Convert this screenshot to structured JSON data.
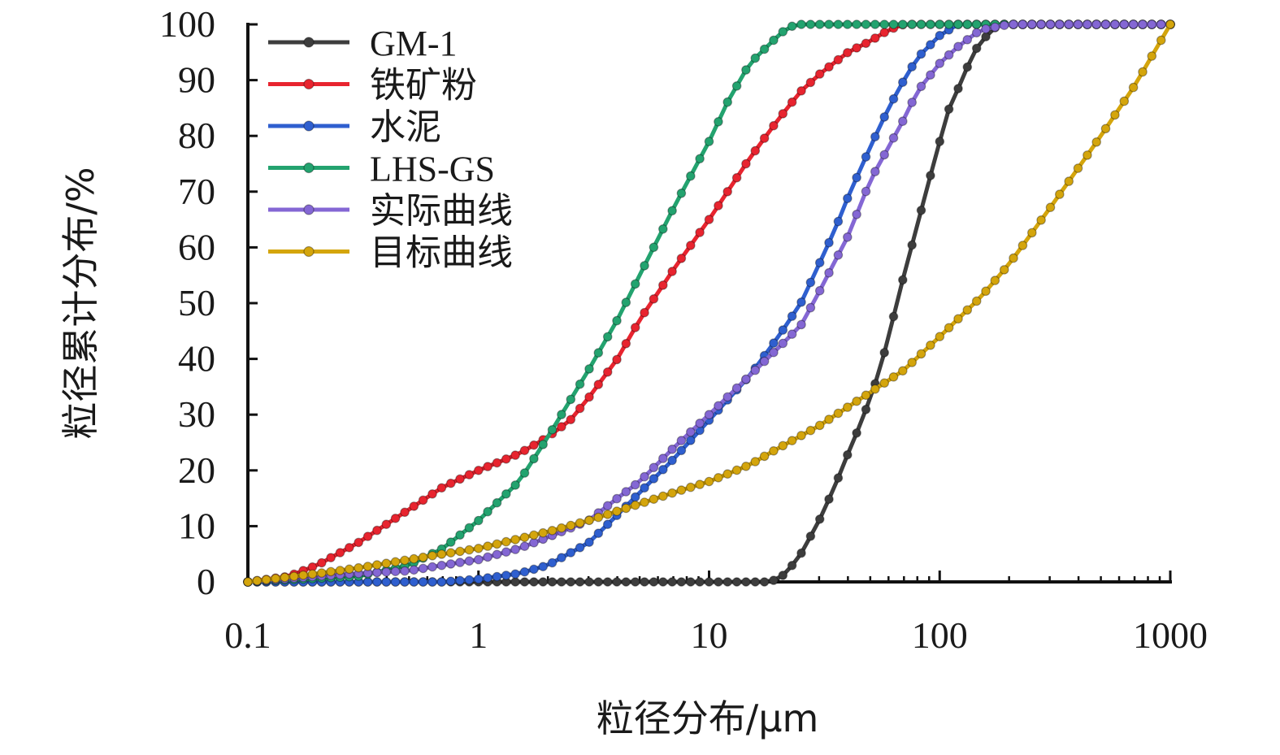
{
  "chart_data": {
    "type": "line",
    "xlabel": "粒径分布/μm",
    "ylabel": "粒径累计分布/%",
    "xscale": "log",
    "xlim": [
      0.1,
      1000
    ],
    "ylim": [
      0,
      100
    ],
    "x_ticks": [
      "0.1",
      "1",
      "10",
      "100",
      "1000"
    ],
    "y_ticks": [
      "0",
      "10",
      "20",
      "30",
      "40",
      "50",
      "60",
      "70",
      "80",
      "90",
      "100"
    ],
    "legend_position": "top-left",
    "series": [
      {
        "name": "GM-1",
        "color": "#3d3d3d",
        "x": [
          0.1,
          1,
          5,
          10,
          18,
          20,
          22,
          25,
          30,
          35,
          40,
          45,
          50,
          55,
          60,
          70,
          80,
          90,
          100,
          110,
          125,
          140,
          160,
          180,
          200,
          300,
          500,
          1000
        ],
        "y": [
          0,
          0,
          0,
          0,
          0,
          0.5,
          2,
          5,
          11,
          17,
          23,
          28,
          33,
          38,
          44,
          55,
          64,
          72,
          79,
          85,
          90,
          95,
          98,
          100,
          100,
          100,
          100,
          100
        ]
      },
      {
        "name": "铁矿粉",
        "color": "#e8242f",
        "x": [
          0.1,
          0.15,
          0.2,
          0.3,
          0.5,
          0.7,
          1,
          1.5,
          2,
          2.5,
          3,
          4,
          5,
          7,
          10,
          15,
          20,
          25,
          30,
          40,
          50,
          60,
          70,
          80,
          100,
          200,
          1000
        ],
        "y": [
          0,
          1,
          3,
          7,
          13,
          17,
          20,
          23,
          26,
          29,
          33,
          40,
          47,
          56,
          65,
          76,
          83,
          88,
          91,
          95,
          97,
          99,
          100,
          100,
          100,
          100,
          100
        ]
      },
      {
        "name": "水泥",
        "color": "#2f5fcf",
        "x": [
          0.1,
          0.3,
          0.5,
          0.7,
          1,
          1.5,
          2,
          3,
          4,
          5,
          7,
          10,
          15,
          20,
          25,
          30,
          35,
          40,
          50,
          60,
          70,
          80,
          100,
          120,
          150,
          200,
          1000
        ],
        "y": [
          0,
          0,
          0,
          0,
          0.5,
          1.5,
          3,
          7,
          12,
          16,
          22,
          29,
          37,
          44,
          50,
          57,
          63,
          69,
          78,
          85,
          90,
          94,
          98,
          100,
          100,
          100,
          100
        ]
      },
      {
        "name": "LHS-GS",
        "color": "#23a36f",
        "x": [
          0.1,
          0.3,
          0.5,
          0.7,
          1,
          1.5,
          2,
          3,
          4,
          5,
          7,
          10,
          12,
          15,
          20,
          22,
          25,
          30,
          50,
          100,
          1000
        ],
        "y": [
          0,
          1,
          3,
          6,
          11,
          18,
          26,
          38,
          47,
          55,
          67,
          79,
          86,
          93,
          98,
          99.5,
          100,
          100,
          100,
          100,
          100
        ]
      },
      {
        "name": "实际曲线",
        "color": "#8467d4",
        "x": [
          0.1,
          0.2,
          0.3,
          0.5,
          0.7,
          1,
          1.5,
          2,
          3,
          4,
          5,
          7,
          10,
          15,
          20,
          25,
          30,
          40,
          50,
          60,
          70,
          80,
          100,
          120,
          150,
          200,
          300,
          1000
        ],
        "y": [
          0,
          1,
          1.5,
          2,
          3,
          4,
          6,
          8,
          11,
          15,
          18,
          24,
          30,
          37,
          42,
          46,
          52,
          62,
          72,
          78,
          83,
          88,
          93,
          96,
          99,
          100,
          100,
          100
        ]
      },
      {
        "name": "目标曲线",
        "color": "#d4a50c",
        "x": [
          0.1,
          0.2,
          0.3,
          0.5,
          0.7,
          1,
          2,
          3,
          5,
          7,
          10,
          15,
          20,
          30,
          50,
          70,
          100,
          150,
          200,
          300,
          500,
          700,
          1000
        ],
        "y": [
          0,
          1.5,
          2.5,
          4,
          5,
          6,
          9,
          11,
          14,
          16,
          18,
          21,
          24,
          28,
          34,
          38,
          44,
          51,
          57,
          67,
          80,
          89,
          100
        ]
      }
    ]
  }
}
